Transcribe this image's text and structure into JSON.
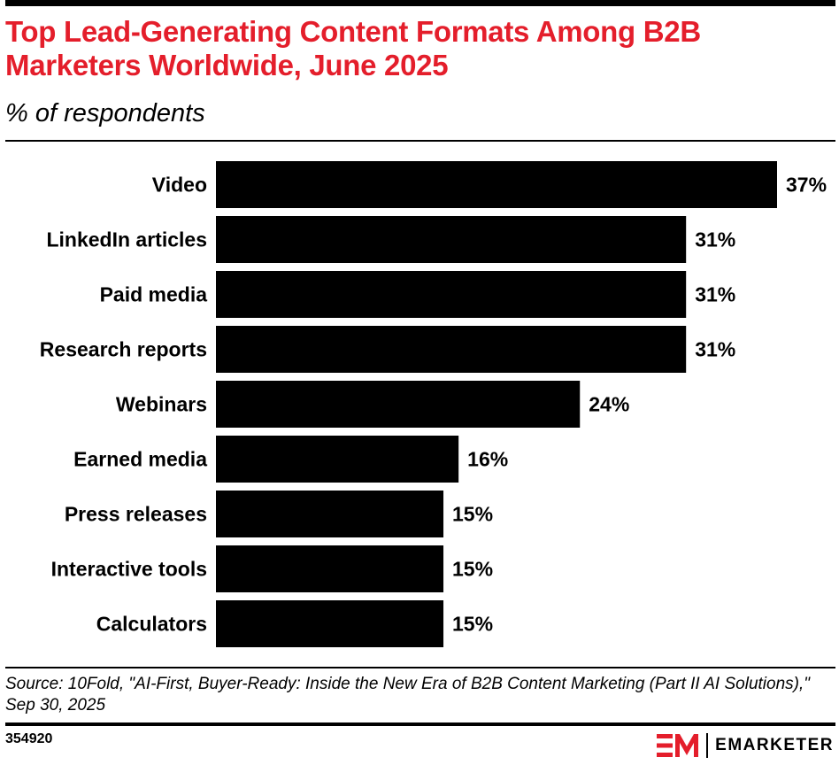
{
  "header": {
    "title": "Top Lead-Generating Content Formats Among B2B Marketers Worldwide, June 2025",
    "subtitle": "% of respondents"
  },
  "chart_data": {
    "type": "bar",
    "orientation": "horizontal",
    "categories": [
      "Video",
      "LinkedIn articles",
      "Paid media",
      "Research reports",
      "Webinars",
      "Earned media",
      "Press releases",
      "Interactive tools",
      "Calculators"
    ],
    "values": [
      37,
      31,
      31,
      31,
      24,
      16,
      15,
      15,
      15
    ],
    "value_labels": [
      "37%",
      "31%",
      "31%",
      "31%",
      "24%",
      "16%",
      "15%",
      "15%",
      "15%"
    ],
    "xlim": [
      0,
      37
    ],
    "grid": false,
    "bar_color": "#000000"
  },
  "footer": {
    "source": "Source: 10Fold, \"AI-First, Buyer-Ready: Inside the New Era of B2B Content Marketing (Part II AI Solutions),\" Sep 30, 2025",
    "chart_id": "354920",
    "brand_name": "EMARKETER",
    "brand_logo_icon": "em-logo-icon"
  },
  "colors": {
    "title": "#e41e2b",
    "logo": "#e41e2b",
    "bars": "#000000"
  }
}
